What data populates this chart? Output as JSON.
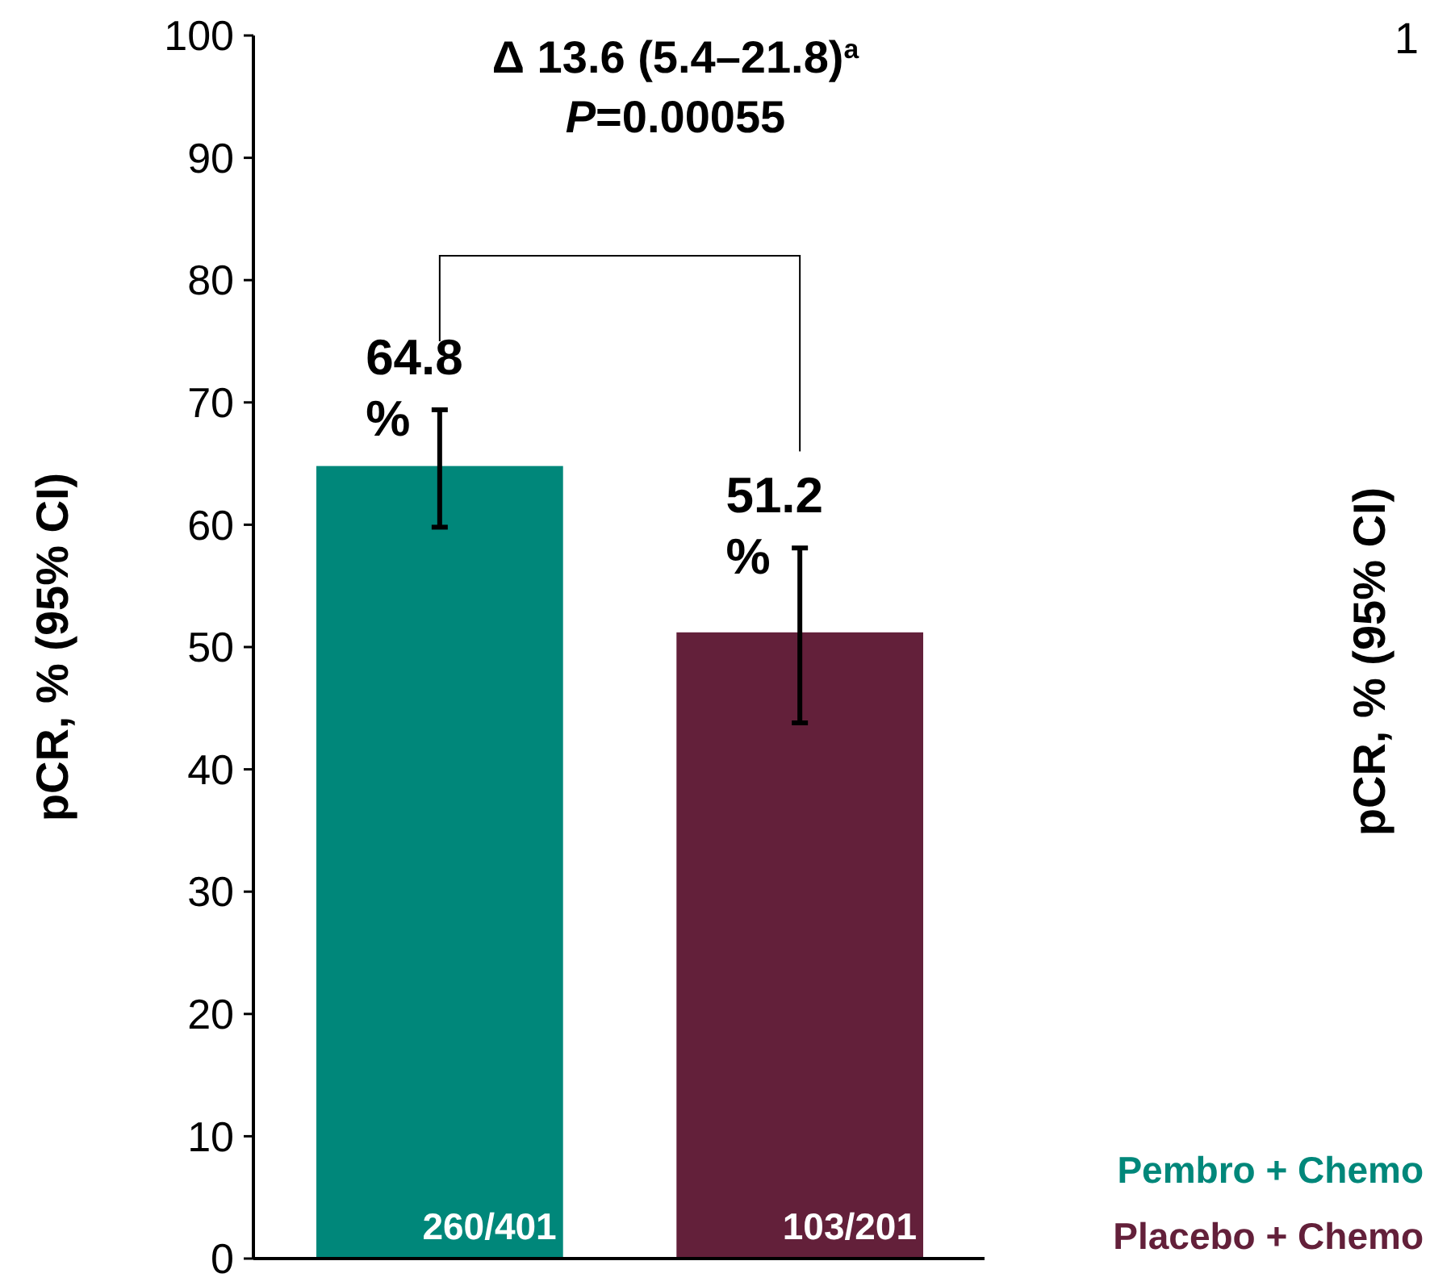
{
  "chart_data": {
    "type": "bar",
    "title": "Δ 13.6 (5.4–21.8)$^{a}$",
    "subtitle": "P=0.00055",
    "ylabel": "pCR, % (95% CI)",
    "categories": [
      null,
      null
    ],
    "series": [
      {
        "name": "Pembro + Chemo",
        "color": "#00877a",
        "values": [
          64.8,
          null
        ],
        "errors": [
          [
            59.8,
            69.4
          ],
          null
        ],
        "value_labels": [
          "64.8%",
          null
        ]
      },
      {
        "name": "Placebo + Chemo",
        "color": "#63203a",
        "values": [
          null,
          51.2
        ],
        "errors": [
          null,
          [
            43.8,
            58.1
          ]
        ],
        "value_labels": [
          null,
          "51.2%"
        ]
      }
    ],
    "ylim": [
      0,
      100
    ],
    "yticks": [
      0,
      10,
      20,
      30,
      40,
      50,
      60,
      70,
      80,
      90,
      100
    ],
    "grid": false,
    "legend": "bottom right",
    "annotations": [
      "260/401",
      "103/201",
      "pCR, % (95% CI)",
      "1"
    ]
  }
}
